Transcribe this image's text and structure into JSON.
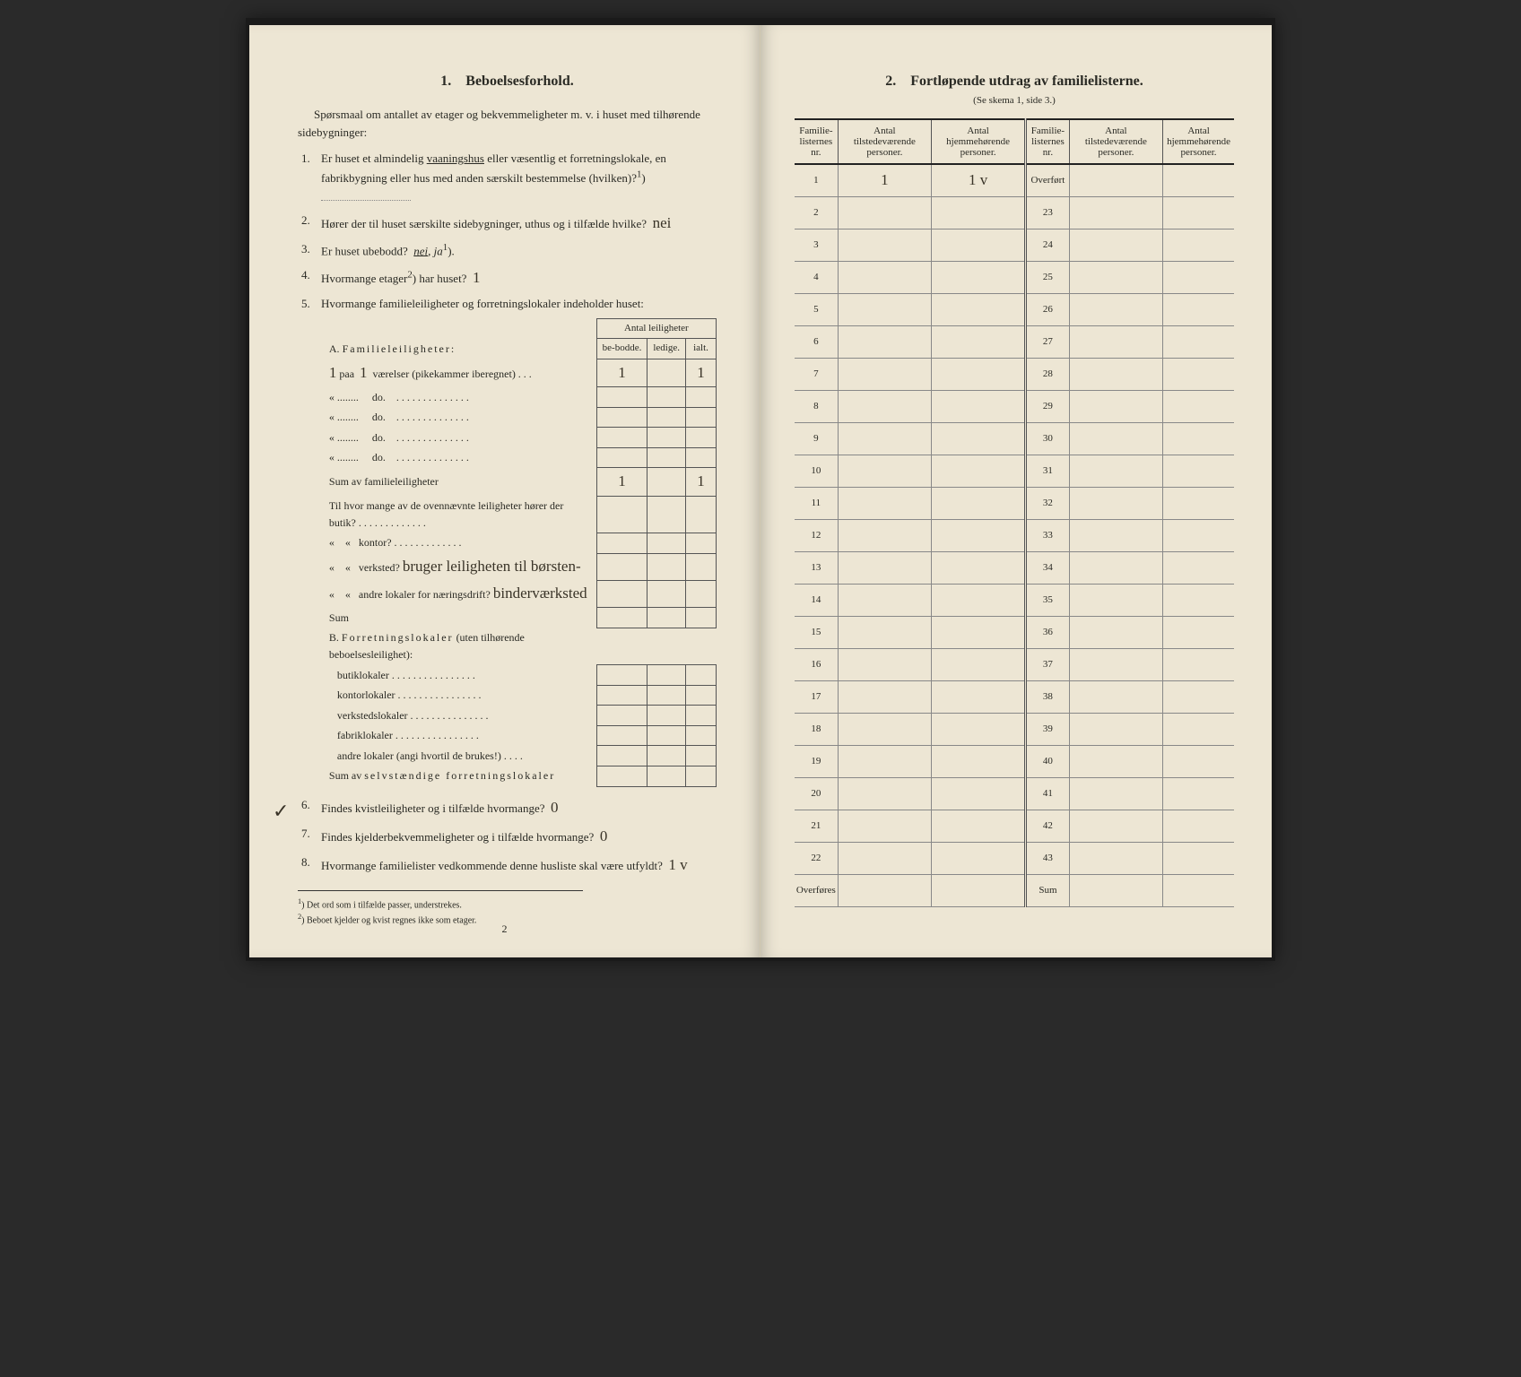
{
  "left": {
    "section_num": "1.",
    "section_title": "Beboelsesforhold.",
    "intro": "Spørsmaal om antallet av etager og bekvemmeligheter m. v. i huset med tilhørende sidebygninger:",
    "q1": "Er huset et almindelig vaaningshus eller væsentlig et forretningslokale, en fabrikbygning eller hus med anden særskilt bestemmelse (hvilken)?",
    "q1_sup": "1",
    "q2": "Hører der til huset særskilte sidebygninger, uthus og i tilfælde hvilke?",
    "q2_answer": "nei",
    "q3": "Er huset ubebodd?",
    "q3_choices": "nei, ja",
    "q3_sup": "1",
    "q4": "Hvormange etager",
    "q4_sup": "2",
    "q4_rest": " har huset?",
    "q4_answer": "1",
    "q5": "Hvormange familieleiligheter og forretningslokaler indeholder huset:",
    "mini_header_top": "Antal leiligheter",
    "mini_headers": [
      "be-bodde.",
      "ledige.",
      "ialt."
    ],
    "a_label": "A. Familieleiligheter:",
    "a_row1_prefix": "1",
    "a_row1_prefix2": "paa",
    "a_row1_val": "1",
    "a_row1_text": "værelser (pikekammer iberegnet) . . .",
    "a_row1_cells": [
      "1",
      "",
      "1"
    ],
    "a_do": "do.",
    "a_sum": "Sum av familieleiligheter",
    "a_sum_cells": [
      "1",
      "",
      "1"
    ],
    "til_text": "Til hvor mange av de ovennævnte leiligheter hører der butik?",
    "til_kontor": "kontor?",
    "til_verksted": "verksted?",
    "til_verksted_hand": "bruger leiligheten til børsten-",
    "til_andre": "andre lokaler for næringsdrift?",
    "til_andre_hand": "binderværksted",
    "til_sum": "Sum",
    "b_label": "B. Forretningslokaler (uten tilhørende beboelsesleilighet):",
    "b_items": [
      "butiklokaler",
      "kontorlokaler",
      "verkstedslokaler",
      "fabriklokaler",
      "andre lokaler (angi hvortil de brukes!)"
    ],
    "b_sum": "Sum av selvstændige forretningslokaler",
    "q6": "Findes kvistleiligheter og i tilfælde hvormange?",
    "q6_answer": "0",
    "q7": "Findes kjelderbekvemmeligheter og i tilfælde hvormange?",
    "q7_answer": "0",
    "q8": "Hvormange familielister vedkommende denne husliste skal være utfyldt?",
    "q8_answer": "1 v",
    "fn1": "Det ord som i tilfælde passer, understrekes.",
    "fn2": "Beboet kjelder og kvist regnes ikke som etager.",
    "pagenum": "2"
  },
  "right": {
    "section_num": "2.",
    "section_title": "Fortløpende utdrag av familielisterne.",
    "subtitle": "(Se skema 1, side 3.)",
    "headers": [
      "Familie-listernes nr.",
      "Antal tilstedeværende personer.",
      "Antal hjemmehørende personer."
    ],
    "col1_rows": [
      "1",
      "2",
      "3",
      "4",
      "5",
      "6",
      "7",
      "8",
      "9",
      "10",
      "11",
      "12",
      "13",
      "14",
      "15",
      "16",
      "17",
      "18",
      "19",
      "20",
      "21",
      "22",
      "Overføres"
    ],
    "row1_c2": "1",
    "row1_c3": "1 v",
    "col2_first": "Overført",
    "col2_rows": [
      "23",
      "24",
      "25",
      "26",
      "27",
      "28",
      "29",
      "30",
      "31",
      "32",
      "33",
      "34",
      "35",
      "36",
      "37",
      "38",
      "39",
      "40",
      "41",
      "42",
      "43",
      "Sum"
    ]
  },
  "colors": {
    "paper": "#ede6d4",
    "ink": "#2a2a24",
    "handwriting": "#3a3428",
    "border": "#555555"
  }
}
